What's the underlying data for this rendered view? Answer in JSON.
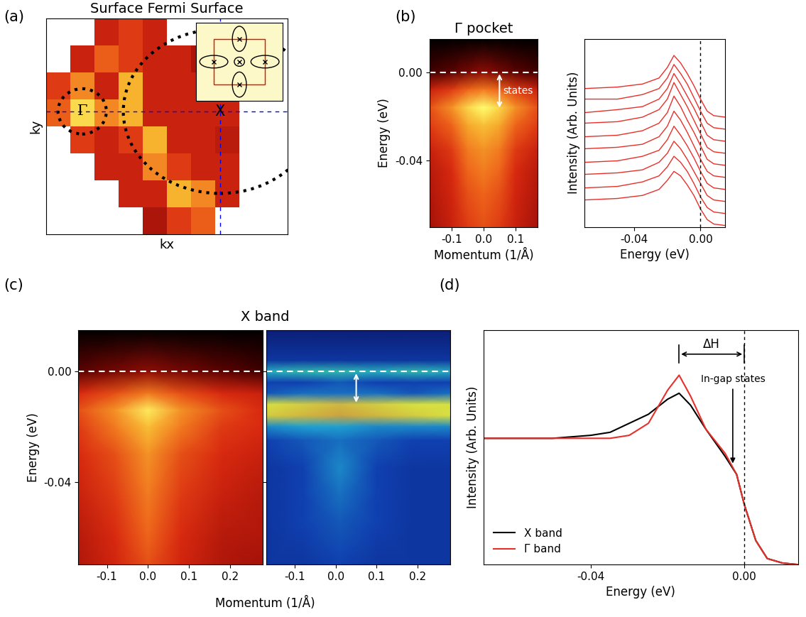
{
  "chart_data": [
    {
      "type": "heatmap",
      "panel": "(a)",
      "title": "Surface Fermi Surface",
      "x_label": "kx",
      "y_label": "ky",
      "xlim": [
        0,
        1
      ],
      "ylim": [
        0,
        1
      ],
      "tick_labels": false,
      "cells": [
        [
          null,
          null,
          0.5,
          0.6,
          0.5,
          null,
          null,
          null,
          null,
          null
        ],
        [
          null,
          0.5,
          0.7,
          0.6,
          0.5,
          0.5,
          0.4,
          null,
          null,
          null
        ],
        [
          0.6,
          0.8,
          0.5,
          0.9,
          0.5,
          0.5,
          0.5,
          0.4,
          null,
          null
        ],
        [
          0.7,
          1.0,
          0.8,
          0.9,
          0.5,
          0.5,
          0.5,
          0.5,
          null,
          null
        ],
        [
          null,
          0.6,
          0.5,
          0.6,
          0.9,
          0.5,
          0.5,
          0.45,
          null,
          null
        ],
        [
          null,
          null,
          0.5,
          0.5,
          0.8,
          0.6,
          0.5,
          0.5,
          null,
          null
        ],
        [
          null,
          null,
          null,
          0.5,
          0.5,
          0.9,
          0.8,
          0.5,
          null,
          null
        ],
        [
          null,
          null,
          null,
          null,
          0.4,
          0.6,
          0.7,
          null,
          null,
          null
        ]
      ],
      "points": [
        {
          "label": "Γ",
          "x": 0.15,
          "y": 0.57
        },
        {
          "label": "X",
          "x": 0.72,
          "y": 0.57
        }
      ]
    },
    {
      "type": "heatmap",
      "panel": "(b)",
      "title": "Γ pocket",
      "x_label": "Momentum (1/Å)",
      "y_label": "Energy (eV)",
      "x": [
        -0.17,
        -0.1,
        -0.05,
        0.0,
        0.05,
        0.1,
        0.17
      ],
      "y": [
        0.015,
        0.0,
        -0.008,
        -0.016,
        -0.024,
        -0.035,
        -0.045,
        -0.055,
        -0.07
      ],
      "cells": [
        [
          0,
          0,
          0,
          0,
          0,
          0,
          0
        ],
        [
          0.15,
          0.2,
          0.25,
          0.3,
          0.25,
          0.2,
          0.15
        ],
        [
          0.45,
          0.55,
          0.65,
          0.7,
          0.65,
          0.55,
          0.45
        ],
        [
          0.6,
          0.75,
          0.9,
          1.0,
          0.9,
          0.75,
          0.6
        ],
        [
          0.55,
          0.65,
          0.8,
          0.85,
          0.8,
          0.65,
          0.55
        ],
        [
          0.45,
          0.55,
          0.7,
          0.75,
          0.7,
          0.55,
          0.45
        ],
        [
          0.4,
          0.5,
          0.65,
          0.7,
          0.65,
          0.5,
          0.4
        ],
        [
          0.38,
          0.48,
          0.6,
          0.65,
          0.6,
          0.48,
          0.38
        ],
        [
          0.35,
          0.45,
          0.55,
          0.6,
          0.55,
          0.45,
          0.35
        ]
      ],
      "xlim": [
        -0.17,
        0.17
      ],
      "ylim": [
        -0.07,
        0.015
      ],
      "xticks": [
        -0.1,
        {
          "value": 0.0,
          "label": "0.0"
        },
        0.1
      ],
      "yticks": [
        {
          "value": -0.04,
          "label": "-0.04"
        },
        {
          "value": 0.0,
          "label": "0.00"
        }
      ],
      "fermi_level": 0.0,
      "arrow": {
        "text": "states",
        "x": 0.05,
        "y_from": 0.0,
        "y_to": -0.017
      }
    },
    {
      "type": "line",
      "x_label": "Energy (eV)",
      "y_label": "Intensity (Arb. Units)",
      "x": [
        -0.07,
        -0.05,
        -0.035,
        -0.025,
        -0.02,
        -0.016,
        -0.012,
        -0.008,
        -0.004,
        0.0,
        0.004,
        0.008,
        0.015
      ],
      "color": "#e8302a",
      "series": [
        {
          "values": [
            0.2,
            0.21,
            0.23,
            0.27,
            0.34,
            0.42,
            0.37,
            0.3,
            0.22,
            0.13,
            0.05,
            0.02,
            0.01
          ]
        },
        {
          "values": [
            0.21,
            0.21,
            0.24,
            0.28,
            0.35,
            0.44,
            0.38,
            0.31,
            0.22,
            0.13,
            0.05,
            0.02,
            0.01
          ]
        },
        {
          "values": [
            0.2,
            0.22,
            0.24,
            0.29,
            0.36,
            0.46,
            0.39,
            0.31,
            0.23,
            0.14,
            0.05,
            0.02,
            0.01
          ]
        },
        {
          "values": [
            0.21,
            0.22,
            0.25,
            0.3,
            0.37,
            0.48,
            0.4,
            0.32,
            0.23,
            0.14,
            0.05,
            0.02,
            0.01
          ]
        },
        {
          "values": [
            0.2,
            0.21,
            0.24,
            0.29,
            0.36,
            0.47,
            0.4,
            0.31,
            0.23,
            0.14,
            0.05,
            0.02,
            0.01
          ]
        },
        {
          "values": [
            0.2,
            0.21,
            0.23,
            0.28,
            0.35,
            0.45,
            0.39,
            0.31,
            0.22,
            0.13,
            0.05,
            0.02,
            0.01
          ]
        },
        {
          "values": [
            0.19,
            0.2,
            0.23,
            0.27,
            0.34,
            0.43,
            0.37,
            0.3,
            0.22,
            0.13,
            0.05,
            0.02,
            0.01
          ]
        },
        {
          "values": [
            0.19,
            0.2,
            0.22,
            0.27,
            0.33,
            0.41,
            0.36,
            0.29,
            0.21,
            0.13,
            0.05,
            0.02,
            0.01
          ]
        },
        {
          "values": [
            0.18,
            0.19,
            0.22,
            0.26,
            0.32,
            0.39,
            0.35,
            0.29,
            0.21,
            0.12,
            0.05,
            0.02,
            0.01
          ]
        },
        {
          "values": [
            0.18,
            0.19,
            0.21,
            0.25,
            0.31,
            0.37,
            0.34,
            0.28,
            0.21,
            0.12,
            0.05,
            0.02,
            0.01
          ]
        }
      ],
      "xlim": [
        -0.07,
        0.015
      ],
      "ylim": [
        0,
        1.25
      ],
      "xticks": [
        {
          "value": -0.04,
          "label": "-0.04"
        },
        {
          "value": 0.0,
          "label": "0.00"
        }
      ],
      "tick_labels": "x",
      "fermi_level": 0.0
    },
    {
      "type": "heatmap",
      "panel": "(c)",
      "title": "X band",
      "x_label": "Momentum (1/Å)",
      "y_label": "Energy (eV)",
      "x": [
        -0.17,
        -0.08,
        0.0,
        0.08,
        0.18,
        0.28
      ],
      "y": [
        0.015,
        0.0,
        -0.008,
        -0.014,
        -0.02,
        -0.03,
        -0.045,
        -0.06,
        -0.07
      ],
      "cells": [
        [
          0,
          0,
          0,
          0,
          0,
          0
        ],
        [
          0.2,
          0.25,
          0.3,
          0.25,
          0.2,
          0.15
        ],
        [
          0.5,
          0.6,
          0.7,
          0.6,
          0.5,
          0.45
        ],
        [
          0.6,
          0.75,
          0.95,
          0.75,
          0.6,
          0.5
        ],
        [
          0.55,
          0.7,
          0.85,
          0.7,
          0.55,
          0.5
        ],
        [
          0.5,
          0.6,
          0.75,
          0.6,
          0.5,
          0.45
        ],
        [
          0.45,
          0.55,
          0.7,
          0.55,
          0.45,
          0.4
        ],
        [
          0.4,
          0.5,
          0.65,
          0.5,
          0.4,
          0.38
        ],
        [
          0.38,
          0.48,
          0.6,
          0.48,
          0.38,
          0.35
        ]
      ],
      "xlim": [
        -0.17,
        0.28
      ],
      "ylim": [
        -0.07,
        0.015
      ],
      "xticks": [
        -0.1,
        {
          "value": 0.0,
          "label": "0.0"
        },
        0.1,
        0.2
      ],
      "yticks": [
        {
          "value": -0.04,
          "label": "-0.04"
        },
        {
          "value": 0.0,
          "label": "0.00"
        }
      ],
      "fermi_level": 0.0
    },
    {
      "type": "heatmap",
      "x": [
        -0.17,
        -0.08,
        0.01,
        0.1,
        0.19,
        0.28
      ],
      "y": [
        0.015,
        0.004,
        0.0,
        -0.004,
        -0.008,
        -0.012,
        -0.016,
        -0.02,
        -0.025,
        -0.035,
        -0.045,
        -0.055,
        -0.07
      ],
      "cells": [
        [
          0.02,
          0.02,
          0.02,
          0.02,
          0.02,
          0.02
        ],
        [
          0.15,
          0.15,
          0.15,
          0.15,
          0.15,
          0.15
        ],
        [
          0.45,
          0.5,
          0.5,
          0.45,
          0.5,
          0.45
        ],
        [
          0.2,
          0.2,
          0.25,
          0.2,
          0.2,
          0.2
        ],
        [
          0.25,
          0.3,
          0.3,
          0.3,
          0.25,
          0.3
        ],
        [
          0.8,
          0.85,
          0.9,
          0.85,
          0.8,
          0.8
        ],
        [
          0.85,
          0.9,
          0.95,
          0.9,
          0.85,
          0.8
        ],
        [
          0.35,
          0.4,
          0.4,
          0.35,
          0.35,
          0.35
        ],
        [
          0.2,
          0.25,
          0.3,
          0.25,
          0.2,
          0.2
        ],
        [
          0.15,
          0.2,
          0.35,
          0.2,
          0.15,
          0.15
        ],
        [
          0.15,
          0.2,
          0.3,
          0.2,
          0.15,
          0.15
        ],
        [
          0.15,
          0.2,
          0.25,
          0.2,
          0.15,
          0.15
        ],
        [
          0.15,
          0.15,
          0.2,
          0.15,
          0.15,
          0.15
        ]
      ],
      "xlim": [
        -0.17,
        0.28
      ],
      "ylim": [
        -0.07,
        0.015
      ],
      "xticks": [
        -0.1,
        {
          "value": 0.0,
          "label": "0.0"
        },
        0.1,
        0.2
      ],
      "yticks": [
        -0.04,
        0.0
      ],
      "tick_labels": "x",
      "fermi_level": 0.0,
      "arrow": {
        "x": 0.05,
        "y_from": 0.0,
        "y_to": -0.012
      }
    },
    {
      "type": "line",
      "panel": "(d)",
      "x_label": "Energy (eV)",
      "y_label": "Intensity (Arb. Units)",
      "x": [
        -0.068,
        -0.05,
        -0.04,
        -0.035,
        -0.03,
        -0.025,
        -0.02,
        -0.017,
        -0.014,
        -0.01,
        -0.005,
        -0.002,
        0.0,
        0.003,
        0.006,
        0.01,
        0.014
      ],
      "series": [
        {
          "name": "X band",
          "color": "#000000",
          "values": [
            0.42,
            0.42,
            0.43,
            0.44,
            0.47,
            0.5,
            0.55,
            0.57,
            0.53,
            0.45,
            0.36,
            0.3,
            0.2,
            0.08,
            0.02,
            0.005,
            0.0
          ]
        },
        {
          "name": "Γ band",
          "color": "#e8302a",
          "values": [
            0.42,
            0.42,
            0.42,
            0.42,
            0.43,
            0.47,
            0.58,
            0.63,
            0.56,
            0.45,
            0.37,
            0.3,
            0.2,
            0.08,
            0.02,
            0.005,
            0.0
          ]
        }
      ],
      "xlim": [
        -0.068,
        0.014
      ],
      "ylim": [
        0,
        0.78
      ],
      "xticks": [
        {
          "value": -0.04,
          "label": "-0.04"
        },
        {
          "value": 0.0,
          "label": "0.00"
        }
      ],
      "tick_labels": "x",
      "legend": "lower left",
      "fermi_level": 0.0,
      "gap": {
        "label": "ΔH",
        "from": -0.017,
        "to": 0.0,
        "y": 0.7
      },
      "in_gap": {
        "label": "In-gap states",
        "x": -0.003,
        "y_text": 0.6,
        "y_arrow": 0.33
      }
    }
  ]
}
